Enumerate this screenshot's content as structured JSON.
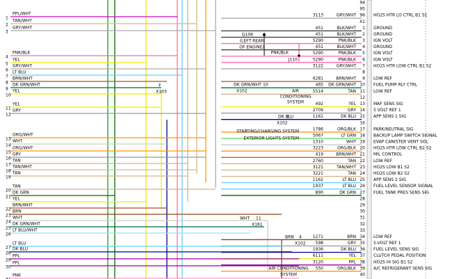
{
  "right_rows": [
    {
      "pin": "94"
    },
    {
      "pin": "95"
    },
    {
      "pin": "96",
      "circuit": "3113",
      "wire": "GRY/WHT",
      "signal": "HO2S HTR LO CTRL B1 S1",
      "stroke": "#aaaaaa"
    },
    {
      "pin": "X1"
    },
    {
      "pin": "1",
      "circuit": "451",
      "wire": "BLK/WHT",
      "signal": "GROUND",
      "stroke": "#333333"
    },
    {
      "pin": "2",
      "circuit": "451",
      "wire": "BLK/WHT",
      "signal": "GROUND",
      "stroke": "#333333"
    },
    {
      "pin": "3",
      "circuit": "5290",
      "wire": "PNK/BLK",
      "signal": "IGN VOLT",
      "stroke": "#ff66aa"
    },
    {
      "pin": "4",
      "circuit": "451",
      "wire": "BLK/WHT",
      "signal": "GROUND",
      "stroke": "#333333"
    },
    {
      "pin": "5",
      "circuit": "5290",
      "wire": "PNK/BLK",
      "signal": "IGN VOLT",
      "stroke": "#ff66aa"
    },
    {
      "pin": "6",
      "circuit": "5290",
      "wire": "PNK/BLK",
      "signal": "IGN VOLT",
      "stroke": "#ff66aa"
    },
    {
      "pin": "7",
      "circuit": "3122",
      "wire": "GRY/WHT",
      "signal": "HO2S HTR LOW CTRL B1 S2",
      "stroke": "#aaaaaa"
    },
    {
      "pin": "8"
    },
    {
      "pin": "9",
      "circuit": "6281",
      "wire": "BRN/WHT",
      "signal": "LOW REF",
      "stroke": "#a0522d"
    },
    {
      "pin": "10",
      "circuit": "465",
      "wire": "DK GRN/WHT",
      "signal": "FUEL PUMP RLY CTRL",
      "stroke": "#006644"
    },
    {
      "pin": "11",
      "circuit": "5514",
      "wire": "TAN",
      "signal": "LOW REF",
      "stroke": "#d2b48c"
    },
    {
      "pin": "12"
    },
    {
      "pin": "13",
      "circuit": "492",
      "wire": "YEL",
      "signal": "MAF SENS SIG",
      "stroke": "#eeee00"
    },
    {
      "pin": "14",
      "circuit": "2709",
      "wire": "GRY",
      "signal": "5 VOLT REF 1",
      "stroke": "#999999"
    },
    {
      "pin": "15",
      "circuit": "1161",
      "wire": "DK BLU",
      "signal": "APP SENS 1 SIG",
      "stroke": "#000088"
    },
    {
      "pin": "16"
    },
    {
      "pin": "17",
      "circuit": "1786",
      "wire": "ORG/BLK",
      "signal": "PARK/NEUTRAL SIG",
      "stroke": "#ff8800"
    },
    {
      "pin": "18",
      "circuit": "5067",
      "wire": "LT GRN",
      "signal": "BACKUP LAMP SWITCH SIGNAL",
      "stroke": "#66dd66"
    },
    {
      "pin": "19",
      "circuit": "1310",
      "wire": "WHT",
      "signal": "EVAP CANISTER VENT SOL",
      "stroke": "#cccccc"
    },
    {
      "pin": "20",
      "circuit": "3223",
      "wire": "ORG/BLK",
      "signal": "HO2S HTR LOW CTRL B2 S2",
      "stroke": "#ff8800"
    },
    {
      "pin": "21",
      "circuit": "419",
      "wire": "BRN/WHT",
      "signal": "MIL CONTROL",
      "stroke": "#a0522d"
    },
    {
      "pin": "22",
      "circuit": "2760",
      "wire": "TAN",
      "signal": "LOW REF",
      "stroke": "#d2b48c"
    },
    {
      "pin": "23",
      "circuit": "3121",
      "wire": "TAN/WHT",
      "signal": "HO2S LOW B1 S2",
      "stroke": "#d8b88a"
    },
    {
      "pin": "24",
      "circuit": "3221",
      "wire": "TAN",
      "signal": "HO2S LOW B2 S2",
      "stroke": "#d2b48c"
    },
    {
      "pin": "25",
      "circuit": "1162",
      "wire": "LT BLU",
      "signal": "APP SENS 2 SIG",
      "stroke": "#66ccff"
    },
    {
      "pin": "26",
      "circuit": "1937",
      "wire": "LT BLU",
      "signal": "FUEL LEVEL SENSOR SIGNAL",
      "stroke": "#66ccff"
    },
    {
      "pin": "27",
      "circuit": "890",
      "wire": "DK GRN",
      "signal": "FUEL TANK PRES SENS SIG",
      "stroke": "#006600"
    },
    {
      "pin": "28"
    },
    {
      "pin": "29"
    },
    {
      "pin": "30"
    },
    {
      "pin": "31"
    },
    {
      "pin": "32"
    },
    {
      "pin": "33"
    },
    {
      "pin": "34",
      "circuit": "1271",
      "wire": "BRN",
      "signal": "LOW REF",
      "stroke": "#8b4513"
    },
    {
      "pin": "35",
      "circuit": "598",
      "wire": "GRY",
      "signal": "5-VOLT REF 1",
      "stroke": "#999999"
    },
    {
      "pin": "36",
      "circuit": "1936",
      "wire": "DK BLU",
      "signal": "FUEL LEVEL SENS SIG",
      "stroke": "#000088"
    },
    {
      "pin": "37",
      "circuit": "6111",
      "wire": "YEL",
      "signal": "CLUTCH PEDAL POSITION",
      "stroke": "#eeee00"
    },
    {
      "pin": "38",
      "circuit": "3120",
      "wire": "PPL",
      "signal": "HO2S HI SIG B1 S2",
      "stroke": "#990099"
    },
    {
      "pin": "39",
      "circuit": "550",
      "wire": "ORG/BLK",
      "signal": "A/C REFRIGERANT SENS SIG",
      "stroke": "#ff8800"
    },
    {
      "pin": "40"
    }
  ],
  "left_rows": [
    {
      "pin": "1",
      "wire": "PPL/WHT",
      "stroke": "#cc00cc"
    },
    {
      "pin": "2",
      "wire": "TAN/WHT",
      "stroke": "#d8b88a"
    },
    {
      "pin": "3",
      "wire": "GRY/WHT",
      "stroke": "#aaaaaa"
    },
    {
      "pin": "4",
      "wire": "PNK/BLK",
      "stroke": "#ff66aa"
    },
    {
      "pin": "5",
      "wire": "YEL",
      "stroke": "#eeee00"
    },
    {
      "pin": "6",
      "wire": "GRY/WHT",
      "stroke": "#aaaaaa"
    },
    {
      "pin": "7",
      "wire": "LT BLU",
      "stroke": "#66ccff"
    },
    {
      "pin": "8",
      "wire": "BRN/WHT",
      "stroke": "#a0522d"
    },
    {
      "pin": "9",
      "wire": "DK GRN/WHT",
      "stroke": "#006644"
    },
    {
      "pin": "10",
      "wire": "YEL",
      "stroke": "#eeee00"
    },
    {
      "pin": "11",
      "wire": "YEL",
      "stroke": "#eeee00"
    },
    {
      "pin": "12",
      "wire": "GRY",
      "stroke": "#999999"
    },
    {
      "pin": "13",
      "wire": "ORG/WHT",
      "stroke": "#ff9900"
    },
    {
      "pin": "14",
      "wire": "WHT",
      "stroke": "#cccccc"
    },
    {
      "pin": "15",
      "wire": "ORG/WHT",
      "stroke": "#ff9900"
    },
    {
      "pin": "16",
      "wire": "GRY",
      "stroke": "#999999"
    },
    {
      "pin": "17",
      "wire": "TAN",
      "stroke": "#d2b48c"
    },
    {
      "pin": "18",
      "wire": "TAN/WHT",
      "stroke": "#d8b88a"
    },
    {
      "pin": "19",
      "wire": "TAN",
      "stroke": "#d2b48c"
    },
    {
      "pin": "20",
      "wire": "TAN",
      "stroke": "#d2b48c"
    },
    {
      "pin": "21",
      "wire": "DK GRN",
      "stroke": "#006600"
    },
    {
      "wire": "YEL",
      "stroke": "#eeee00"
    },
    {
      "pin": "22",
      "wire": "BRN/WHT",
      "stroke": "#a0522d"
    },
    {
      "pin": "23",
      "wire": "BRN",
      "stroke": "#8b4513"
    },
    {
      "pin": "24",
      "wire": "WHT",
      "stroke": "#cccccc"
    },
    {
      "pin": "25",
      "wire": "DK GRN/WHT",
      "stroke": "#006644"
    },
    {
      "pin": "26",
      "wire": "LT BLU/WHT",
      "stroke": "#99ddff"
    },
    {
      "pin": "27",
      "wire": "LT BLU",
      "stroke": "#66ccff"
    },
    {
      "pin": "28",
      "wire": "DK BLU",
      "stroke": "#000088"
    },
    {
      "pin": "29",
      "wire": "PPL",
      "stroke": "#990099"
    },
    {
      "pin": "30",
      "wire": "PPL",
      "stroke": "#990099"
    },
    {
      "pin": "31",
      "wire": "PNK",
      "stroke": "#ff99cc"
    }
  ],
  "annotations": [
    "G106",
    "(LEFT REAR",
    "OF ENGINE)",
    "PNK/BLK",
    "J110",
    "F",
    "X103",
    "DK GRN/WHT",
    "10",
    "X102",
    "AIR",
    "CONDITIONING",
    "SYSTEM",
    "DK BLU",
    "2",
    "X102",
    "STARTING/CHARGING SYSTEM",
    "EXTERIOR LIGHTS SYSTEM",
    "WHT",
    "11",
    "X161",
    "BRN",
    "4",
    "X102",
    "AIR CONDITIONING",
    "SYSTEM"
  ]
}
